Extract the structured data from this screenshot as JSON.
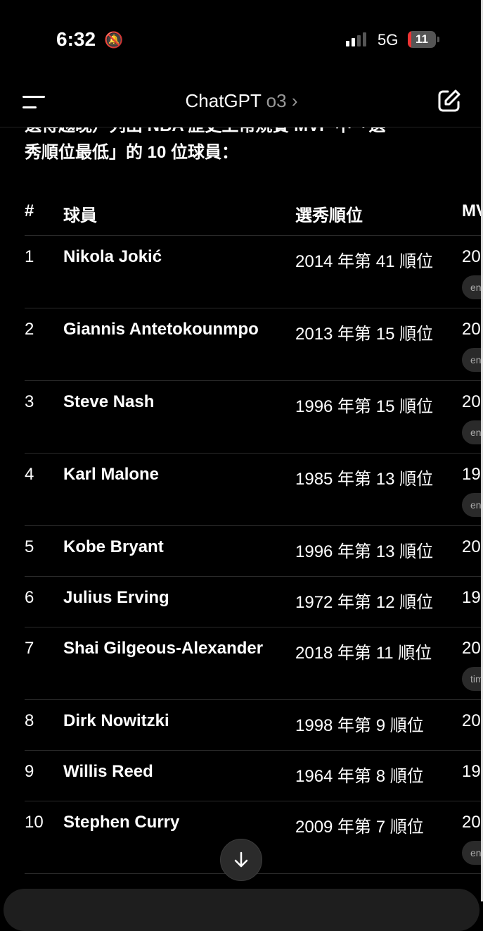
{
  "status": {
    "time": "6:32",
    "network": "5G",
    "battery": "11"
  },
  "header": {
    "title": "ChatGPT",
    "model": "o3",
    "chevron": "›"
  },
  "intro": {
    "line1": "選得越晚）列出 NBA 歷史上常規賽 MVP 中「選",
    "line2": "秀順位最低」的 10 位球員："
  },
  "table": {
    "headers": [
      "#",
      "球員",
      "選秀順位",
      "MV"
    ],
    "rows": [
      {
        "n": "1",
        "player": "Nikola Jokić",
        "draft": "2014 年第 41 順位",
        "mvp": "20",
        "chip": "en"
      },
      {
        "n": "2",
        "player": "Giannis Antetokounmpo",
        "draft": "2013 年第 15 順位",
        "mvp": "20",
        "chip": "en"
      },
      {
        "n": "3",
        "player": "Steve Nash",
        "draft": "1996 年第 15 順位",
        "mvp": "20",
        "chip": "en"
      },
      {
        "n": "4",
        "player": "Karl Malone",
        "draft": "1985 年第 13 順位",
        "mvp": "19",
        "chip": "en"
      },
      {
        "n": "5",
        "player": "Kobe Bryant",
        "draft": "1996 年第 13 順位",
        "mvp": "20",
        "chip": ""
      },
      {
        "n": "6",
        "player": "Julius Erving",
        "draft": "1972 年第 12 順位",
        "mvp": "19",
        "chip": ""
      },
      {
        "n": "7",
        "player": "Shai Gilgeous-Alexander",
        "draft": "2018 年第 11 順位",
        "mvp": "20",
        "chip": "tim"
      },
      {
        "n": "8",
        "player": "Dirk Nowitzki",
        "draft": "1998 年第 9 順位",
        "mvp": "20",
        "chip": ""
      },
      {
        "n": "9",
        "player": "Willis Reed",
        "draft": "1964 年第 8 順位",
        "mvp": "19",
        "chip": ""
      },
      {
        "n": "10",
        "player": "Stephen Curry",
        "draft": "2009 年第 7 順位",
        "mvp": "20",
        "chip": "en"
      }
    ]
  }
}
